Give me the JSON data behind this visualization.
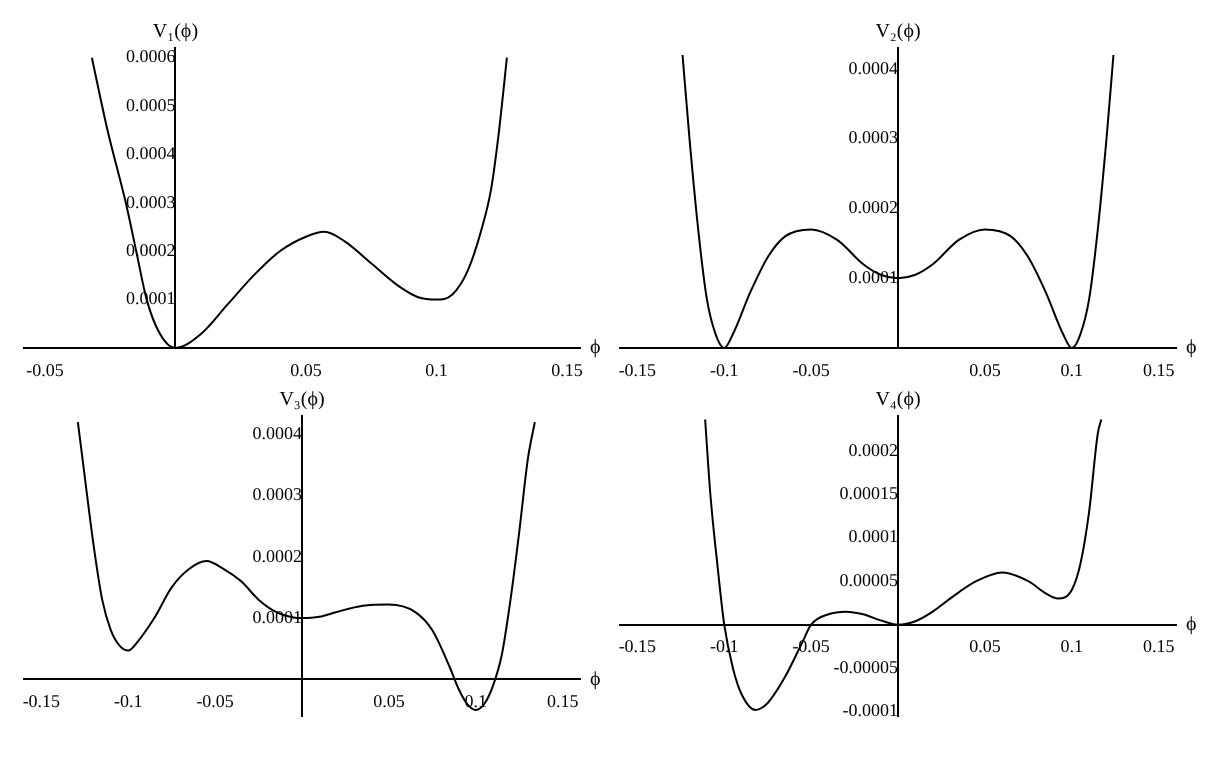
{
  "chart_data": [
    {
      "type": "line",
      "xlabel": "ϕ",
      "ylabel": "V₁(ϕ)",
      "xlim": [
        -0.058,
        0.155
      ],
      "ylim": [
        0,
        0.00062
      ],
      "xticks": [
        -0.05,
        0.05,
        0.1,
        0.15
      ],
      "yticks": [
        0.0001,
        0.0002,
        0.0003,
        0.0004,
        0.0005,
        0.0006
      ],
      "x": [
        -0.032,
        -0.026,
        -0.019,
        -0.015,
        -0.011,
        -0.006,
        0,
        0.01,
        0.02,
        0.03,
        0.04,
        0.05,
        0.057,
        0.065,
        0.075,
        0.085,
        0.093,
        0.1,
        0.106,
        0.112,
        0.117,
        0.121,
        0.124,
        0.127
      ],
      "series": [
        {
          "color": "#000000",
          "values": [
            0.0006,
            0.00045,
            0.0003,
            0.0002,
            0.0001,
            3e-05,
            0,
            3e-05,
            9e-05,
            0.00015,
            0.0002,
            0.00023,
            0.00024,
            0.00022,
            0.000175,
            0.00013,
            0.000105,
            0.0001,
            0.00011,
            0.00016,
            0.00024,
            0.00033,
            0.00045,
            0.0006
          ]
        }
      ]
    },
    {
      "type": "line",
      "xlabel": "ϕ",
      "ylabel": "V₂(ϕ)",
      "xlim": [
        -0.16,
        0.16
      ],
      "ylim": [
        0,
        0.00043
      ],
      "xticks": [
        -0.15,
        -0.1,
        -0.05,
        0.05,
        0.1,
        0.15
      ],
      "yticks": [
        0.0001,
        0.0002,
        0.0003,
        0.0004
      ],
      "x": [
        -0.124,
        -0.12,
        -0.115,
        -0.11,
        -0.105,
        -0.1,
        -0.095,
        -0.085,
        -0.075,
        -0.065,
        -0.05,
        -0.035,
        -0.02,
        -0.01,
        0,
        0.01,
        0.02,
        0.035,
        0.05,
        0.065,
        0.075,
        0.085,
        0.095,
        0.1,
        0.105,
        0.11,
        0.115,
        0.12,
        0.124
      ],
      "series": [
        {
          "color": "#000000",
          "values": [
            0.00042,
            0.0003,
            0.00017,
            7e-05,
            2e-05,
            0,
            2e-05,
            8e-05,
            0.00013,
            0.00016,
            0.00017,
            0.000155,
            0.00012,
            0.000105,
            0.0001,
            0.000105,
            0.00012,
            0.000155,
            0.00017,
            0.00016,
            0.00013,
            8e-05,
            2e-05,
            0,
            2e-05,
            7e-05,
            0.00017,
            0.0003,
            0.00042
          ]
        }
      ]
    },
    {
      "type": "line",
      "xlabel": "ϕ",
      "ylabel": "V₃(ϕ)",
      "xlim": [
        -0.16,
        0.16
      ],
      "ylim": [
        -6e-05,
        0.00043
      ],
      "xticks": [
        -0.15,
        -0.1,
        -0.05,
        0.05,
        0.1,
        0.15
      ],
      "yticks": [
        0.0001,
        0.0002,
        0.0003,
        0.0004
      ],
      "x": [
        -0.129,
        -0.125,
        -0.12,
        -0.115,
        -0.11,
        -0.105,
        -0.1,
        -0.095,
        -0.085,
        -0.075,
        -0.065,
        -0.055,
        -0.045,
        -0.035,
        -0.025,
        -0.015,
        -0.005,
        0,
        0.01,
        0.02,
        0.035,
        0.05,
        0.065,
        0.075,
        0.085,
        0.09,
        0.095,
        0.1,
        0.105,
        0.11,
        0.115,
        0.12,
        0.125,
        0.13,
        0.134
      ],
      "series": [
        {
          "color": "#000000",
          "values": [
            0.00042,
            0.00033,
            0.00022,
            0.00013,
            8e-05,
            5.5e-05,
            4.7e-05,
            6e-05,
            0.0001,
            0.00015,
            0.00018,
            0.000193,
            0.00018,
            0.00016,
            0.00013,
            0.00011,
            0.000101,
            0.0001,
            0.000102,
            0.00011,
            0.00012,
            0.000122,
            0.00011,
            8e-05,
            2e-05,
            -1.5e-05,
            -4e-05,
            -5e-05,
            -4e-05,
            -1e-05,
            4e-05,
            0.00013,
            0.00024,
            0.00036,
            0.00042
          ]
        }
      ]
    },
    {
      "type": "line",
      "xlabel": "ϕ",
      "ylabel": "V₄(ϕ)",
      "xlim": [
        -0.16,
        0.16
      ],
      "ylim": [
        -0.000105,
        0.00024
      ],
      "xticks": [
        -0.15,
        -0.1,
        -0.05,
        0.05,
        0.1,
        0.15
      ],
      "yticks": [
        -0.0001,
        {
          "value": -5e-05,
          "label": "-0.00005"
        },
        {
          "value": 5e-05,
          "label": "0.00005"
        },
        0.0001,
        0.00015,
        0.0002
      ],
      "x": [
        -0.111,
        -0.108,
        -0.104,
        -0.1,
        -0.095,
        -0.09,
        -0.082,
        -0.075,
        -0.065,
        -0.055,
        -0.05,
        -0.04,
        -0.03,
        -0.02,
        -0.01,
        0,
        0.01,
        0.02,
        0.03,
        0.045,
        0.06,
        0.075,
        0.085,
        0.092,
        0.1,
        0.105,
        0.11,
        0.115,
        0.117
      ],
      "series": [
        {
          "color": "#000000",
          "values": [
            0.000236,
            0.00015,
            7e-05,
            0,
            -5e-05,
            -8e-05,
            -9.8e-05,
            -9e-05,
            -6e-05,
            -2e-05,
            0,
            1.2e-05,
            1.5e-05,
            1.2e-05,
            5e-06,
            0,
            4e-06,
            1.5e-05,
            3e-05,
            5e-05,
            6e-05,
            5e-05,
            3.6e-05,
            3e-05,
            4e-05,
            7e-05,
            0.00013,
            0.00022,
            0.000236
          ]
        }
      ]
    }
  ]
}
